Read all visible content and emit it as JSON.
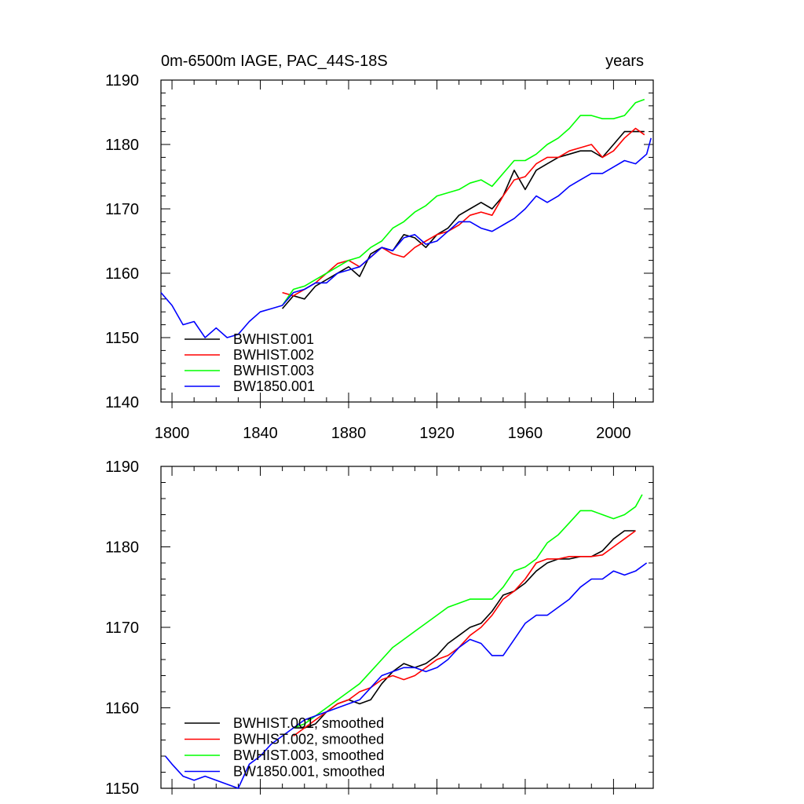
{
  "chart_data": [
    {
      "type": "line",
      "title_left": "0m-6500m IAGE, PAC_44S-18S",
      "title_right": "years",
      "xlim": [
        1795,
        2018
      ],
      "ylim": [
        1140,
        1190
      ],
      "xticks": [
        1800,
        1840,
        1880,
        1920,
        1960,
        2000
      ],
      "yticks": [
        1140,
        1150,
        1160,
        1170,
        1180,
        1190
      ],
      "grid": false,
      "legend_position": "bottom-left",
      "series": [
        {
          "name": "BWHIST.001",
          "color": "#000000",
          "x": [
            1850,
            1855,
            1860,
            1865,
            1870,
            1875,
            1880,
            1885,
            1890,
            1895,
            1900,
            1905,
            1910,
            1915,
            1920,
            1925,
            1930,
            1935,
            1940,
            1945,
            1950,
            1955,
            1960,
            1965,
            1970,
            1975,
            1980,
            1985,
            1990,
            1995,
            2000,
            2005,
            2010,
            2014
          ],
          "y": [
            1154.5,
            1156.5,
            1156,
            1158,
            1159,
            1160,
            1161,
            1159.5,
            1163,
            1164,
            1163.5,
            1166,
            1165.5,
            1164,
            1166,
            1167,
            1169,
            1170,
            1171,
            1170,
            1172,
            1176,
            1173,
            1176,
            1177,
            1178,
            1178.5,
            1179,
            1179,
            1178,
            1180,
            1182,
            1182,
            1182
          ]
        },
        {
          "name": "BWHIST.002",
          "color": "#ff0000",
          "x": [
            1850,
            1855,
            1860,
            1865,
            1870,
            1875,
            1880,
            1885,
            1890,
            1895,
            1900,
            1905,
            1910,
            1915,
            1920,
            1925,
            1930,
            1935,
            1940,
            1945,
            1950,
            1955,
            1960,
            1965,
            1970,
            1975,
            1980,
            1985,
            1990,
            1995,
            2000,
            2005,
            2010,
            2014
          ],
          "y": [
            1157,
            1156.5,
            1157.5,
            1158.5,
            1160,
            1161.5,
            1162,
            1161,
            1162.5,
            1164,
            1163,
            1162.5,
            1164,
            1165,
            1166,
            1166.5,
            1167.5,
            1169,
            1169.5,
            1169,
            1172,
            1174.5,
            1175,
            1177,
            1178,
            1178,
            1179,
            1179.5,
            1180,
            1178,
            1179,
            1181,
            1182.5,
            1181.5
          ]
        },
        {
          "name": "BWHIST.003",
          "color": "#00ff00",
          "x": [
            1850,
            1855,
            1860,
            1865,
            1870,
            1875,
            1880,
            1885,
            1890,
            1895,
            1900,
            1905,
            1910,
            1915,
            1920,
            1925,
            1930,
            1935,
            1940,
            1945,
            1950,
            1955,
            1960,
            1965,
            1970,
            1975,
            1980,
            1985,
            1990,
            1995,
            2000,
            2005,
            2010,
            2014
          ],
          "y": [
            1155,
            1157.5,
            1158,
            1159,
            1160,
            1161,
            1162,
            1162.5,
            1164,
            1165,
            1167,
            1168,
            1169.5,
            1170.5,
            1172,
            1172.5,
            1173,
            1174,
            1174.5,
            1173.5,
            1175.5,
            1177.5,
            1177.5,
            1178.5,
            1180,
            1181,
            1182.5,
            1184.5,
            1184.5,
            1184,
            1184,
            1184.5,
            1186.5,
            1187
          ]
        },
        {
          "name": "BW1850.001",
          "color": "#0000ff",
          "x": [
            1795,
            1800,
            1805,
            1810,
            1815,
            1820,
            1825,
            1830,
            1835,
            1840,
            1845,
            1850,
            1855,
            1860,
            1865,
            1870,
            1875,
            1880,
            1885,
            1890,
            1895,
            1900,
            1905,
            1910,
            1915,
            1920,
            1925,
            1930,
            1935,
            1940,
            1945,
            1950,
            1955,
            1960,
            1965,
            1970,
            1975,
            1980,
            1985,
            1990,
            1995,
            2000,
            2005,
            2010,
            2015,
            2017
          ],
          "y": [
            1157,
            1155,
            1152,
            1152.5,
            1150,
            1151.5,
            1150,
            1150.5,
            1152.5,
            1154,
            1154.5,
            1155,
            1157,
            1157.5,
            1158.5,
            1158.5,
            1160,
            1160.5,
            1161,
            1162.5,
            1164,
            1163.5,
            1165.5,
            1166,
            1164.5,
            1165,
            1166.5,
            1168,
            1168,
            1167,
            1166.5,
            1167.5,
            1168.5,
            1170,
            1172,
            1171,
            1172,
            1173.5,
            1174.5,
            1175.5,
            1175.5,
            1176.5,
            1177.5,
            1177,
            1178.5,
            1181
          ]
        }
      ]
    },
    {
      "type": "line",
      "xlim": [
        1795,
        2018
      ],
      "ylim": [
        1150,
        1190
      ],
      "xticks": [
        1800,
        1840,
        1880,
        1920,
        1960,
        2000
      ],
      "yticks": [
        1150,
        1160,
        1170,
        1180,
        1190
      ],
      "grid": false,
      "legend_position": "bottom-left",
      "series": [
        {
          "name": "BWHIST.001, smoothed",
          "color": "#000000",
          "x": [
            1855,
            1860,
            1865,
            1870,
            1875,
            1880,
            1885,
            1890,
            1895,
            1900,
            1905,
            1910,
            1915,
            1920,
            1925,
            1930,
            1935,
            1940,
            1945,
            1950,
            1955,
            1960,
            1965,
            1970,
            1975,
            1980,
            1985,
            1990,
            1995,
            2000,
            2005,
            2010
          ],
          "y": [
            1157.5,
            1157.5,
            1158,
            1159.5,
            1160.5,
            1161,
            1160.5,
            1161,
            1163,
            1164.5,
            1165.5,
            1165,
            1165.5,
            1166.5,
            1168,
            1169,
            1170,
            1170.5,
            1172,
            1174,
            1174.5,
            1175.5,
            1177,
            1178,
            1178.5,
            1178.5,
            1178.8,
            1178.8,
            1179.5,
            1181,
            1182,
            1182
          ]
        },
        {
          "name": "BWHIST.002, smoothed",
          "color": "#ff0000",
          "x": [
            1855,
            1860,
            1865,
            1870,
            1875,
            1880,
            1885,
            1890,
            1895,
            1900,
            1905,
            1910,
            1915,
            1920,
            1925,
            1930,
            1935,
            1940,
            1945,
            1950,
            1955,
            1960,
            1965,
            1970,
            1975,
            1980,
            1985,
            1990,
            1995,
            2000,
            2005,
            2010
          ],
          "y": [
            1156.5,
            1157.5,
            1158.5,
            1159.5,
            1160.5,
            1161,
            1162,
            1162.5,
            1163.5,
            1164,
            1163.5,
            1164,
            1165,
            1166,
            1166.5,
            1167.5,
            1169,
            1170,
            1171.5,
            1173.5,
            1174.5,
            1176,
            1178,
            1178.5,
            1178.5,
            1178.8,
            1178.8,
            1178.8,
            1179,
            1180,
            1181,
            1182
          ]
        },
        {
          "name": "BWHIST.003, smoothed",
          "color": "#00ff00",
          "x": [
            1855,
            1860,
            1865,
            1870,
            1875,
            1880,
            1885,
            1890,
            1895,
            1900,
            1905,
            1910,
            1915,
            1920,
            1925,
            1930,
            1935,
            1940,
            1945,
            1950,
            1955,
            1960,
            1965,
            1970,
            1975,
            1980,
            1985,
            1990,
            1995,
            2000,
            2005,
            2010,
            2013
          ],
          "y": [
            1157.5,
            1158,
            1159,
            1160,
            1161,
            1162,
            1163,
            1164.5,
            1166,
            1167.5,
            1168.5,
            1169.5,
            1170.5,
            1171.5,
            1172.5,
            1173,
            1173.5,
            1173.5,
            1173.5,
            1175,
            1177,
            1177.5,
            1178.5,
            1180.5,
            1181.5,
            1183,
            1184.5,
            1184.5,
            1184,
            1183.5,
            1184,
            1185,
            1186.5
          ]
        },
        {
          "name": "BW1850.001, smoothed",
          "color": "#0000ff",
          "x": [
            1797,
            1800,
            1805,
            1810,
            1815,
            1820,
            1825,
            1830,
            1835,
            1840,
            1845,
            1850,
            1855,
            1860,
            1865,
            1870,
            1875,
            1880,
            1885,
            1890,
            1895,
            1900,
            1905,
            1910,
            1915,
            1920,
            1925,
            1930,
            1935,
            1940,
            1945,
            1950,
            1955,
            1960,
            1965,
            1970,
            1975,
            1980,
            1985,
            1990,
            1995,
            2000,
            2005,
            2010,
            2015
          ],
          "y": [
            1154,
            1153,
            1151.5,
            1151,
            1151.5,
            1151,
            1150.5,
            1150,
            1153,
            1154,
            1155.5,
            1156.5,
            1157.5,
            1158.5,
            1159,
            1159.5,
            1160,
            1160.5,
            1161,
            1162.5,
            1164,
            1164.5,
            1165,
            1165,
            1164.5,
            1165,
            1166,
            1167.5,
            1168.5,
            1168,
            1166.5,
            1166.5,
            1168.5,
            1170.5,
            1171.5,
            1171.5,
            1172.5,
            1173.5,
            1175,
            1176,
            1176,
            1177,
            1176.5,
            1177,
            1178
          ]
        }
      ]
    }
  ]
}
